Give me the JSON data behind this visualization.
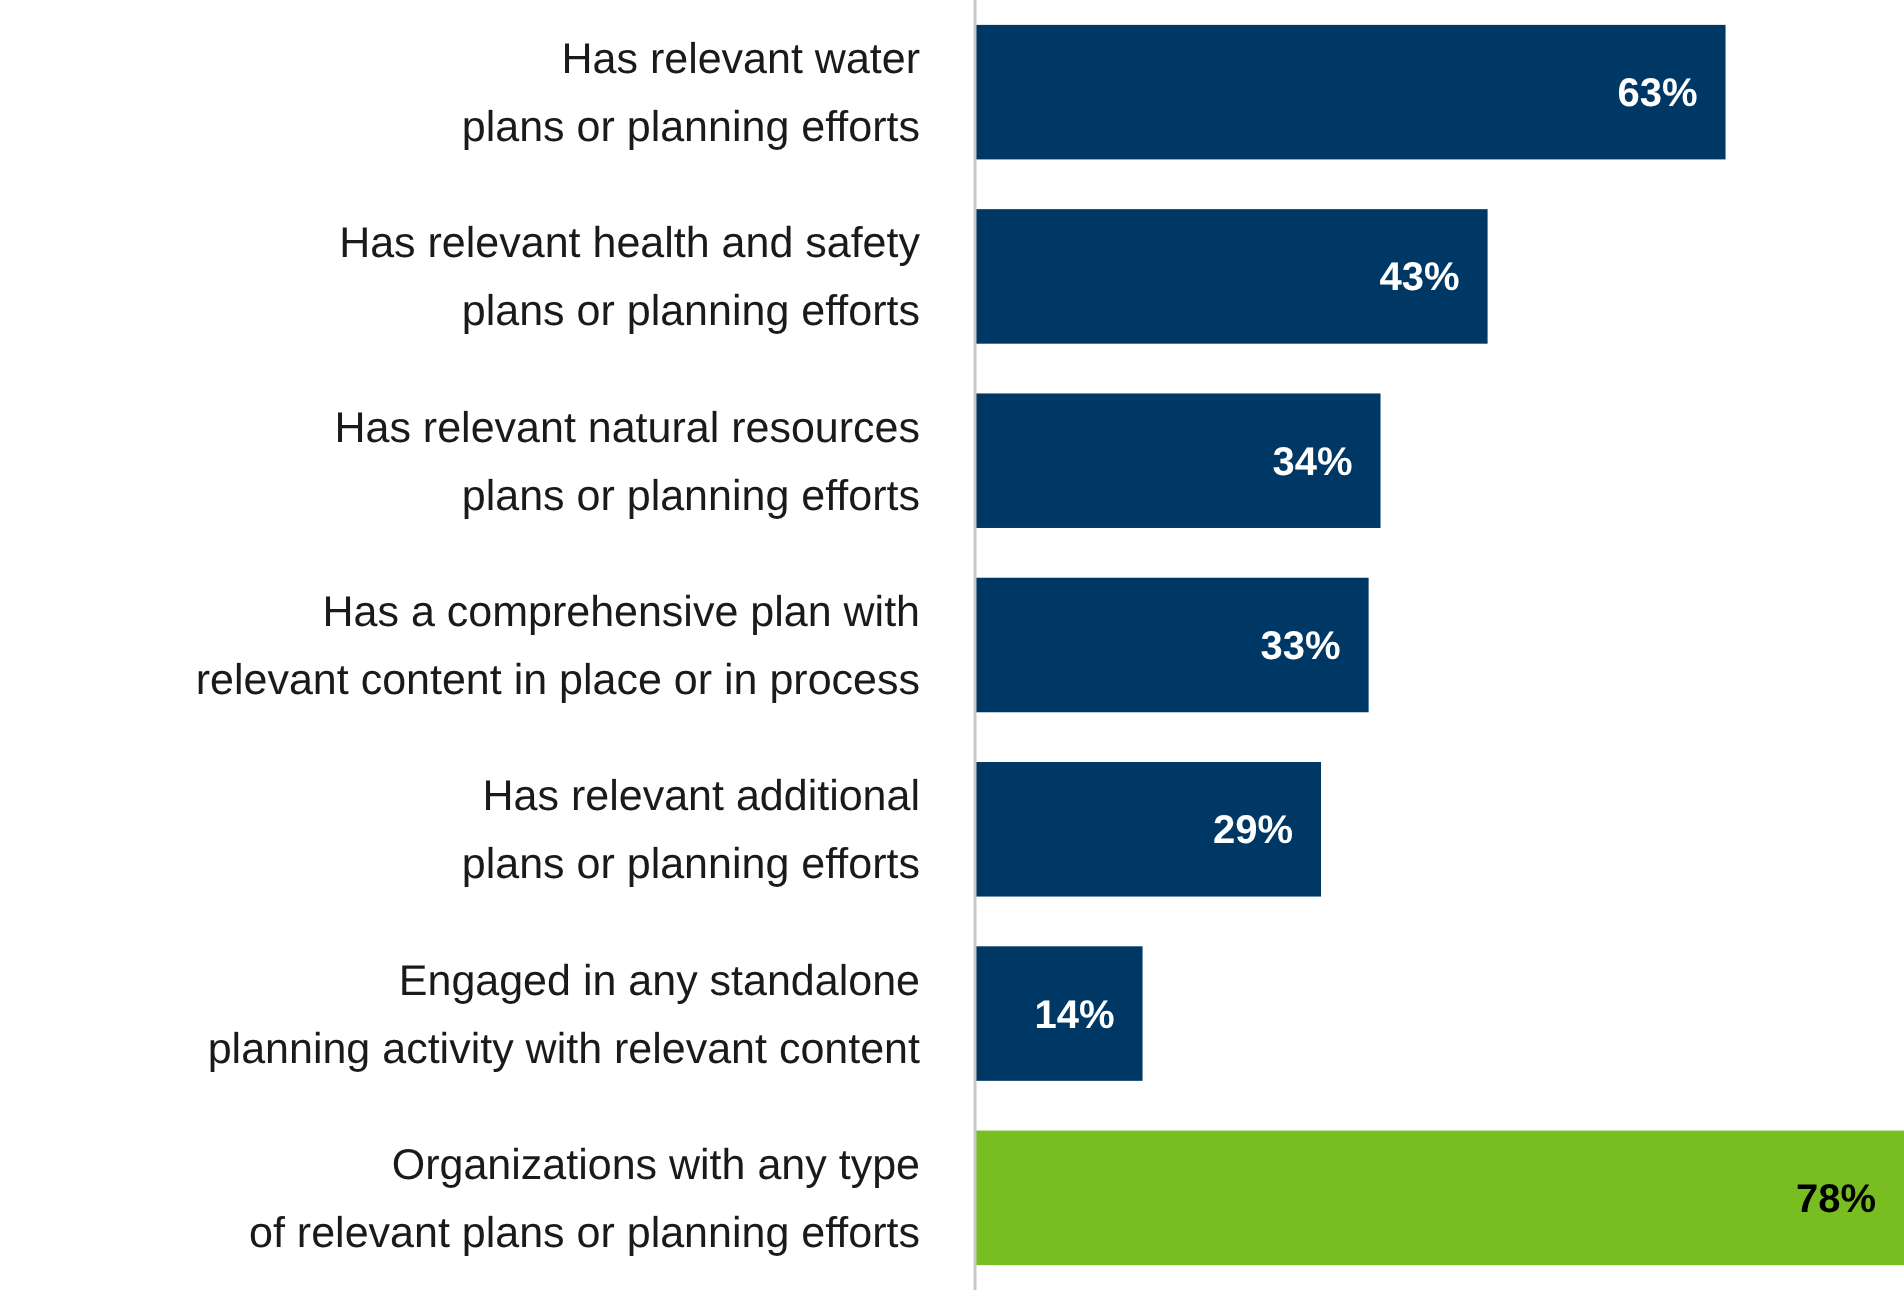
{
  "chart_data": {
    "type": "bar",
    "orientation": "horizontal",
    "categories": [
      "Has relevant water\nplans or planning efforts",
      "Has relevant health and safety\nplans or planning efforts",
      "Has relevant natural resources\nplans or planning efforts",
      "Has a comprehensive plan with\nrelevant content in place or in process",
      "Has relevant additional\nplans or planning efforts",
      "Engaged in any standalone\nplanning activity with relevant content",
      "Organizations with any type\nof relevant plans or planning efforts"
    ],
    "values": [
      63,
      43,
      34,
      33,
      29,
      14,
      78
    ],
    "colors": [
      "#003865",
      "#003865",
      "#003865",
      "#003865",
      "#003865",
      "#003865",
      "#78be20"
    ],
    "value_labels": [
      "63%",
      "43%",
      "34%",
      "33%",
      "29%",
      "14%",
      "78%"
    ]
  }
}
